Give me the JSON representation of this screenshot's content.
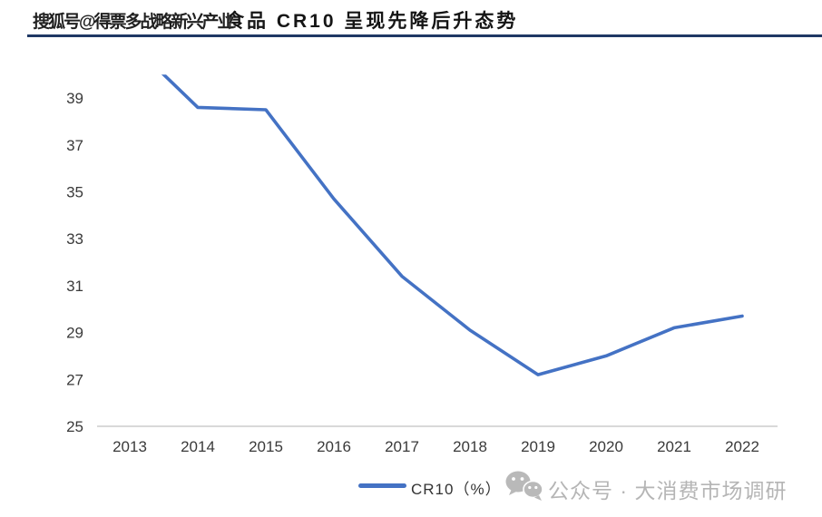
{
  "header": {
    "title": "食品 CR10 呈现先降后升态势",
    "sohu_watermark": "搜狐号@得票多战略新兴产业"
  },
  "legend": {
    "label": "CR10（%）"
  },
  "footer_watermark": {
    "icon": "wechat-icon",
    "text": "公众号 · 大消费市场调研"
  },
  "colors": {
    "line": "#4472C4",
    "divider": "#1F3864",
    "axis_line": "#D9D9D9",
    "axis_label": "#3a3a3a",
    "watermark_gray": "#b5b5b5"
  },
  "chart_data": {
    "type": "line",
    "title": "食品 CR10 呈现先降后升态势",
    "categories": [
      "2013",
      "2014",
      "2015",
      "2016",
      "2017",
      "2018",
      "2019",
      "2020",
      "2021",
      "2022"
    ],
    "series": [
      {
        "name": "CR10（%）",
        "values": [
          41.4,
          38.6,
          38.5,
          34.7,
          31.4,
          29.1,
          27.2,
          28.0,
          29.2,
          29.7
        ]
      }
    ],
    "ylabel": "",
    "xlabel": "",
    "ylim": [
      25,
      40
    ],
    "yticks": [
      25,
      27,
      29,
      31,
      33,
      35,
      37,
      39
    ],
    "grid": false,
    "legend_position": "bottom",
    "note": "2013 value exceeds axis maximum (40) so the line is clipped at the top of the plot area"
  }
}
